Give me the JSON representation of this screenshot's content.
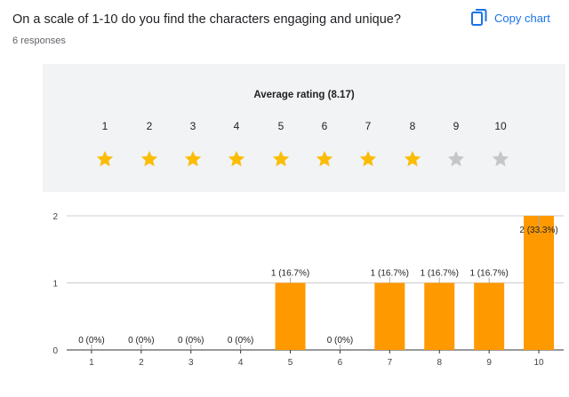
{
  "question": {
    "title": "On a scale of 1-10 do you find the characters engaging and unique?",
    "responses": "6 responses"
  },
  "copy_chart": {
    "label": "Copy chart",
    "icon": "copy-icon"
  },
  "rating": {
    "title": "Average rating (8.17)",
    "stars": [
      {
        "label": "1",
        "filled": true
      },
      {
        "label": "2",
        "filled": true
      },
      {
        "label": "3",
        "filled": true
      },
      {
        "label": "4",
        "filled": true
      },
      {
        "label": "5",
        "filled": true
      },
      {
        "label": "6",
        "filled": true
      },
      {
        "label": "7",
        "filled": true
      },
      {
        "label": "8",
        "filled": true
      },
      {
        "label": "9",
        "filled": false
      },
      {
        "label": "10",
        "filled": false
      }
    ],
    "filled_color": "#fbbc04",
    "empty_color": "#c6c6c6"
  },
  "colors": {
    "accent": "#1a73e8",
    "bar": "#ff9900",
    "panel_bg": "#f1f3f4"
  },
  "chart_data": {
    "type": "bar",
    "categories": [
      "1",
      "2",
      "3",
      "4",
      "5",
      "6",
      "7",
      "8",
      "9",
      "10"
    ],
    "values": [
      0,
      0,
      0,
      0,
      1,
      0,
      1,
      1,
      1,
      2
    ],
    "data_labels": [
      "0 (0%)",
      "0 (0%)",
      "0 (0%)",
      "0 (0%)",
      "1 (16.7%)",
      "0 (0%)",
      "1 (16.7%)",
      "1 (16.7%)",
      "1 (16.7%)",
      "2 (33.3%)"
    ],
    "yticks": [
      "0",
      "1",
      "2"
    ],
    "ylim": [
      0,
      2
    ],
    "grid": true,
    "title": "",
    "xlabel": "",
    "ylabel": ""
  }
}
